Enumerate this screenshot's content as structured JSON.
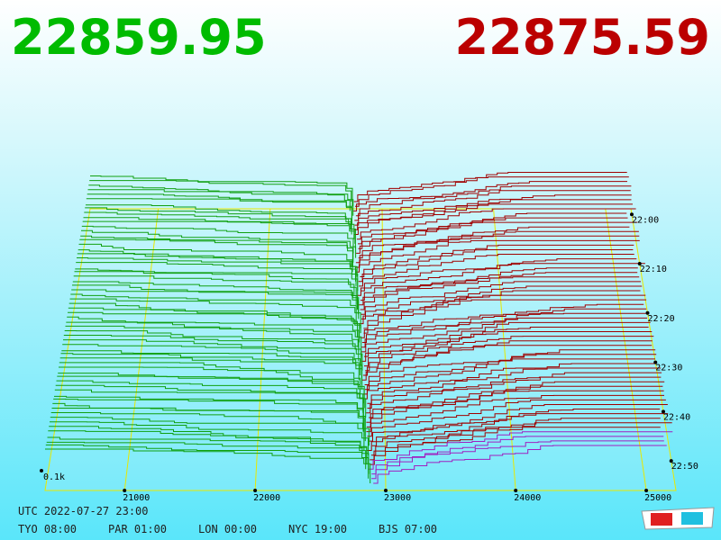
{
  "prices": {
    "bid": "22859.95",
    "ask": "22875.59"
  },
  "axis": {
    "price_labels": [
      "21000",
      "22000",
      "23000",
      "24000",
      "25000"
    ],
    "time_labels": [
      "22:00",
      "22:10",
      "22:20",
      "22:30",
      "22:40",
      "22:50"
    ],
    "scale_label": "0.1k"
  },
  "footer": {
    "utc": "UTC 2022-07-27 23:00",
    "zones": [
      "TYO 08:00",
      "PAR 01:00",
      "LON 00:00",
      "NYC 19:00",
      "BJS 07:00"
    ]
  }
}
